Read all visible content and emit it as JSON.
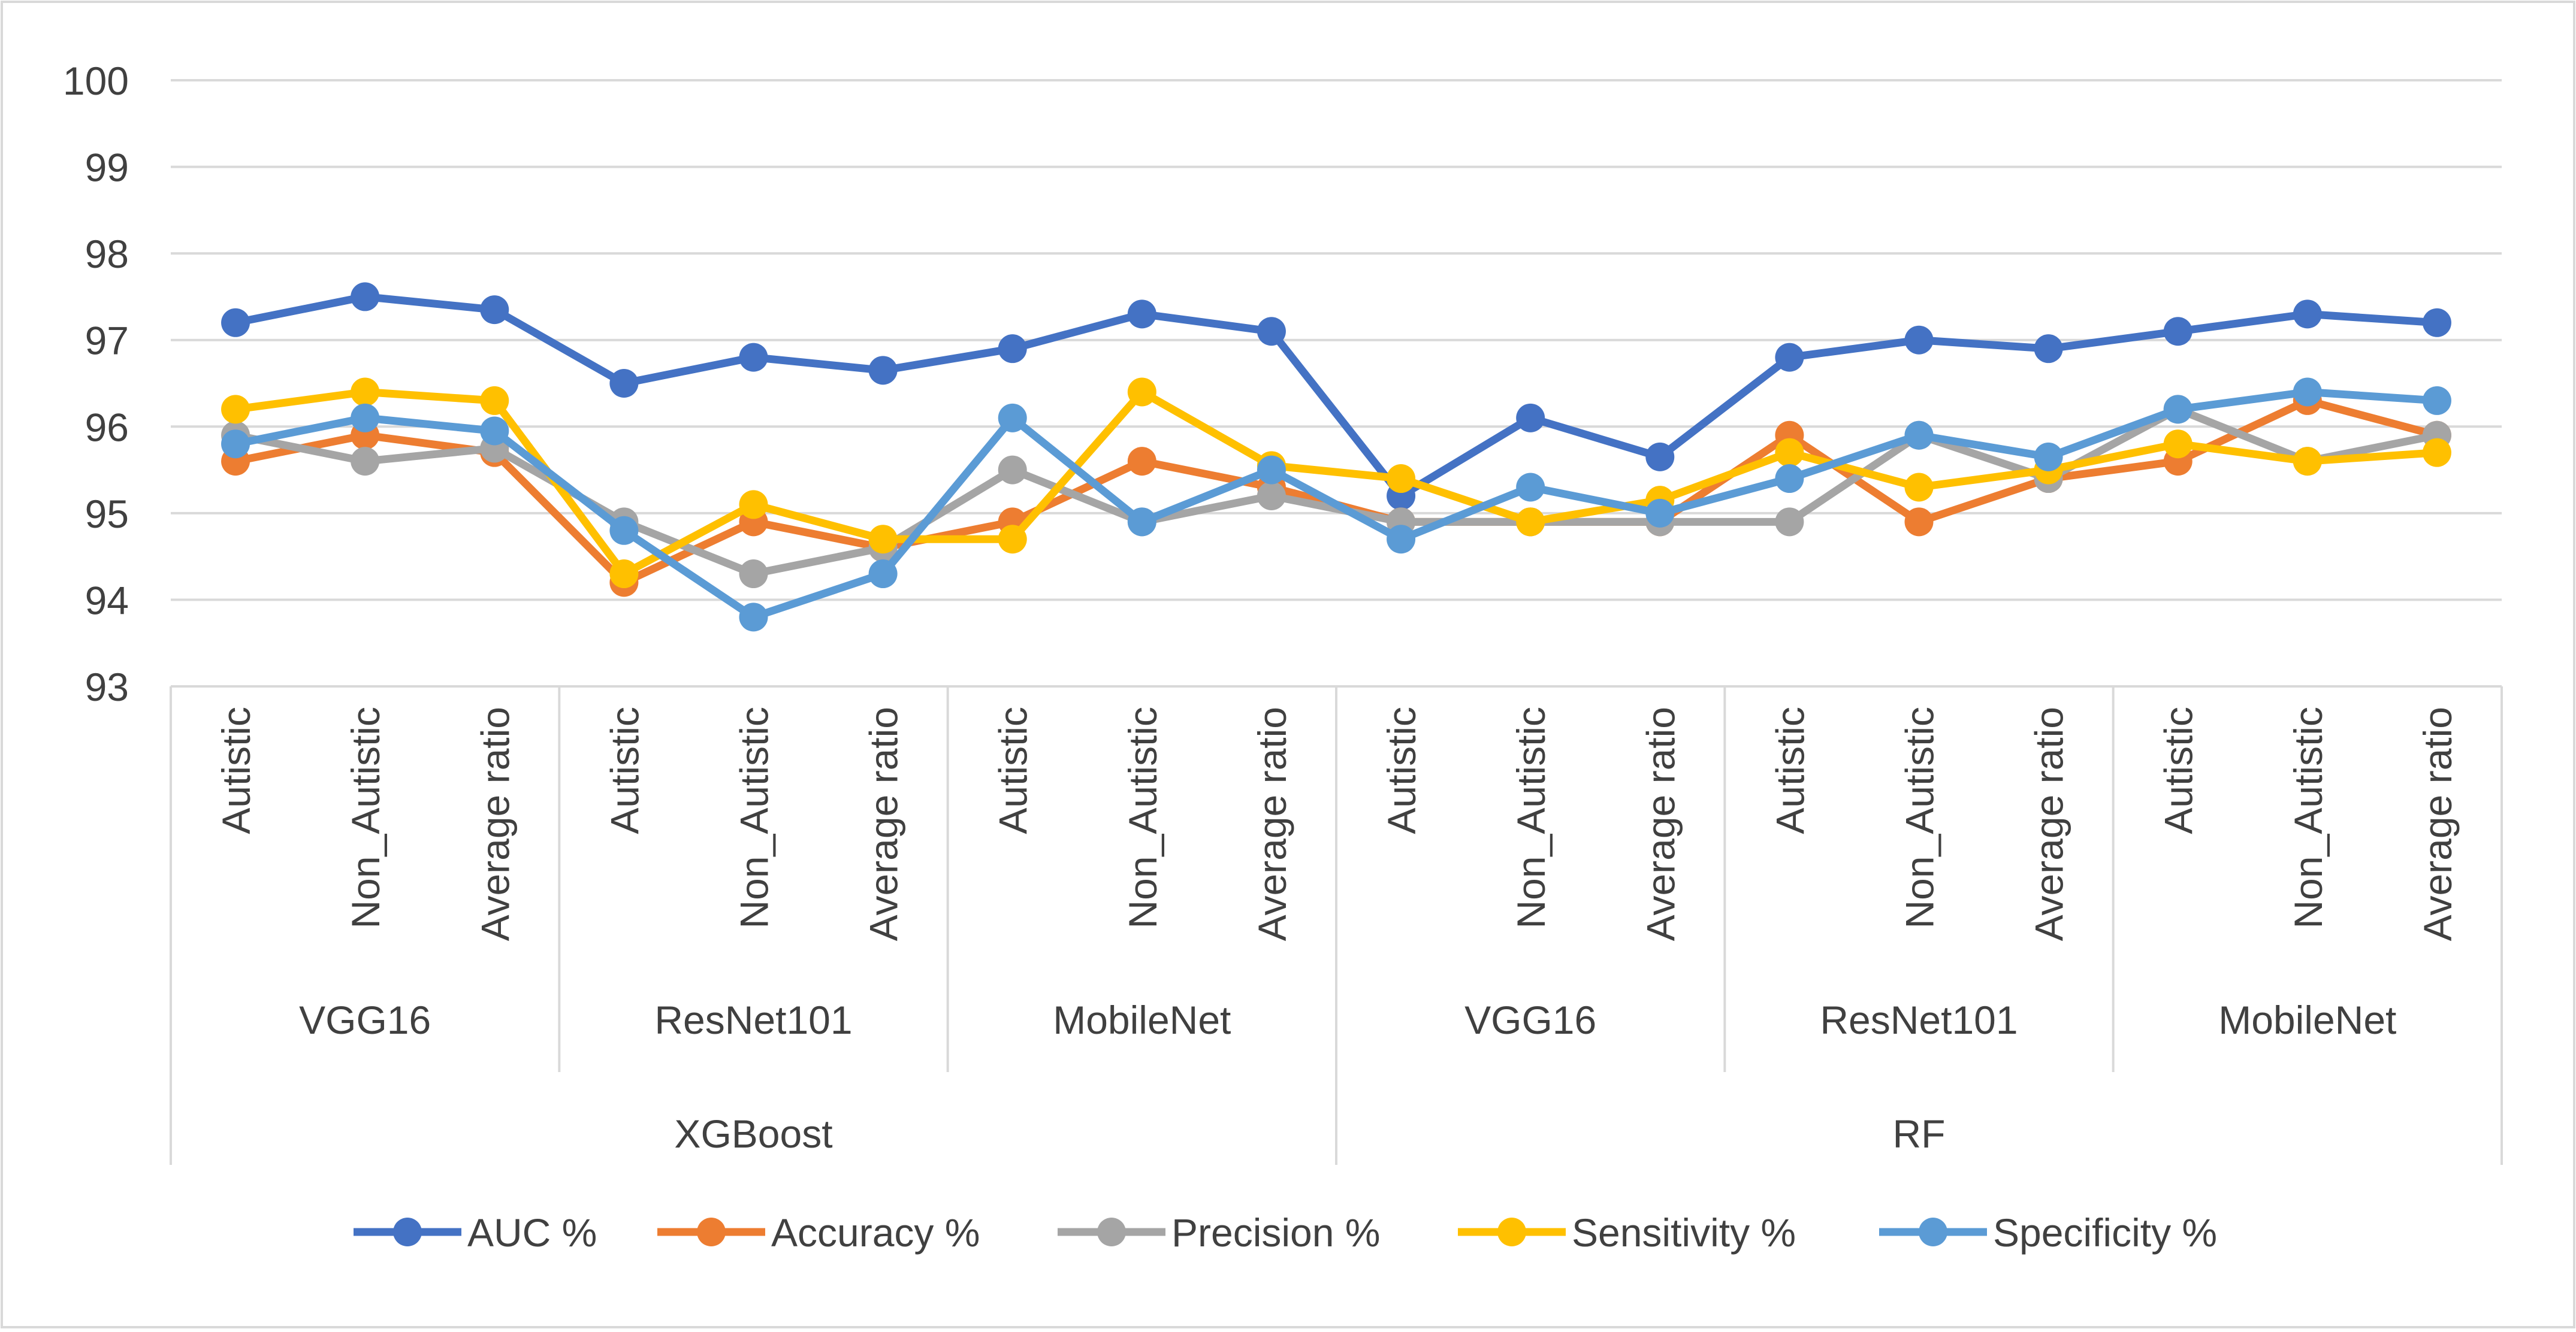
{
  "chart_data": {
    "type": "line",
    "title": "",
    "xlabel": "",
    "ylabel": "",
    "ylim": [
      93,
      100
    ],
    "yticks": [
      93,
      94,
      95,
      96,
      97,
      98,
      99,
      100
    ],
    "grid": true,
    "legend_position": "bottom",
    "categories": [
      "Autistic",
      "Non_Autistic",
      "Average ratio",
      "Autistic",
      "Non_Autistic",
      "Average ratio",
      "Autistic",
      "Non_Autistic",
      "Average ratio",
      "Autistic",
      "Non_Autistic",
      "Average ratio",
      "Autistic",
      "Non_Autistic",
      "Average ratio",
      "Autistic",
      "Non_Autistic",
      "Average ratio"
    ],
    "group_level1": [
      {
        "label": "VGG16",
        "span": 3
      },
      {
        "label": "ResNet101",
        "span": 3
      },
      {
        "label": "MobileNet",
        "span": 3
      },
      {
        "label": "VGG16",
        "span": 3
      },
      {
        "label": "ResNet101",
        "span": 3
      },
      {
        "label": "MobileNet",
        "span": 3
      }
    ],
    "group_level2": [
      {
        "label": "XGBoost",
        "span": 9
      },
      {
        "label": "RF",
        "span": 9
      }
    ],
    "series": [
      {
        "name": "AUC %",
        "color": "#4472C4",
        "values": [
          97.2,
          97.5,
          97.35,
          96.5,
          96.8,
          96.65,
          96.9,
          97.3,
          97.1,
          95.2,
          96.1,
          95.65,
          96.8,
          97.0,
          96.9,
          97.1,
          97.3,
          97.2
        ]
      },
      {
        "name": "Accuracy %",
        "color": "#ED7D31",
        "values": [
          95.6,
          95.9,
          95.7,
          94.2,
          94.9,
          94.6,
          94.9,
          95.6,
          95.3,
          94.9,
          94.9,
          94.9,
          95.9,
          94.9,
          95.4,
          95.6,
          96.3,
          95.9
        ]
      },
      {
        "name": "Precision %",
        "color": "#A5A5A5",
        "values": [
          95.9,
          95.6,
          95.75,
          94.9,
          94.3,
          94.6,
          95.5,
          94.9,
          95.2,
          94.9,
          94.9,
          94.9,
          94.9,
          95.9,
          95.4,
          96.2,
          95.6,
          95.9
        ]
      },
      {
        "name": "Sensitivity %",
        "color": "#FFC000",
        "values": [
          96.2,
          96.4,
          96.3,
          94.3,
          95.1,
          94.7,
          94.7,
          96.4,
          95.55,
          95.4,
          94.9,
          95.15,
          95.7,
          95.3,
          95.5,
          95.8,
          95.6,
          95.7
        ]
      },
      {
        "name": "Specificity %",
        "color": "#5B9BD5",
        "values": [
          95.8,
          96.1,
          95.95,
          94.8,
          93.8,
          94.3,
          96.1,
          94.9,
          95.5,
          94.7,
          95.3,
          95.0,
          95.4,
          95.9,
          95.65,
          96.2,
          96.4,
          96.3
        ]
      }
    ]
  }
}
